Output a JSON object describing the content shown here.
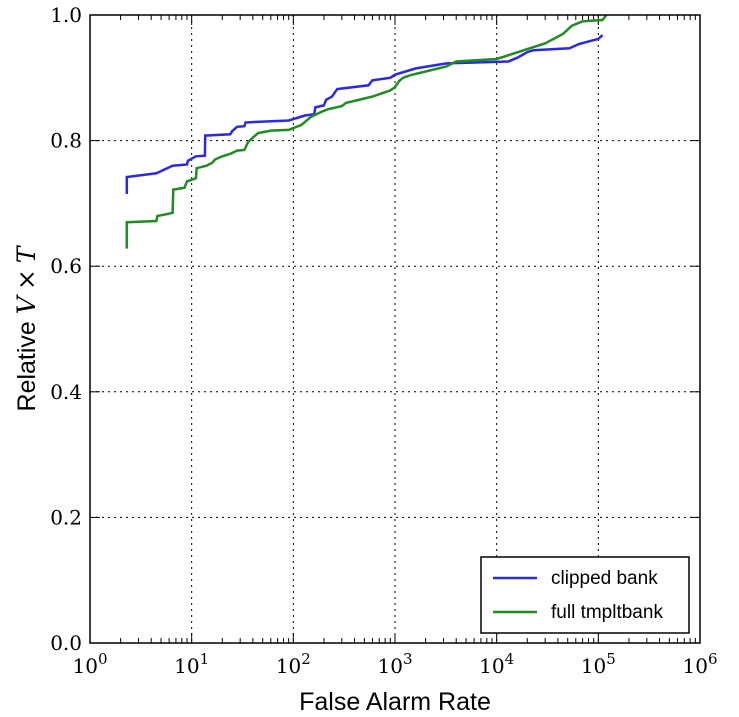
{
  "chart_data": {
    "type": "line",
    "title": "",
    "xlabel": "False Alarm Rate",
    "ylabel_prefix": "Relative ",
    "ylabel_math_v": "V",
    "ylabel_math_times": "×",
    "ylabel_math_t": "T",
    "xscale": "log",
    "xlim": [
      1,
      1000000
    ],
    "ylim": [
      0.0,
      1.0
    ],
    "grid": true,
    "legend_position": "lower-right",
    "xticks": [
      {
        "base": "10",
        "exp": "0"
      },
      {
        "base": "10",
        "exp": "1"
      },
      {
        "base": "10",
        "exp": "2"
      },
      {
        "base": "10",
        "exp": "3"
      },
      {
        "base": "10",
        "exp": "4"
      },
      {
        "base": "10",
        "exp": "5"
      },
      {
        "base": "10",
        "exp": "6"
      }
    ],
    "yticks": [
      "0.0",
      "0.2",
      "0.4",
      "0.6",
      "0.8",
      "1.0"
    ],
    "series": [
      {
        "name": "clipped bank",
        "color": "#2a2ae6",
        "points": [
          [
            2.3,
            0.715
          ],
          [
            2.3,
            0.742
          ],
          [
            4.5,
            0.748
          ],
          [
            6.5,
            0.76
          ],
          [
            9.0,
            0.762
          ],
          [
            9.2,
            0.768
          ],
          [
            11.0,
            0.775
          ],
          [
            13.5,
            0.776
          ],
          [
            13.6,
            0.808
          ],
          [
            24,
            0.81
          ],
          [
            25,
            0.815
          ],
          [
            28,
            0.822
          ],
          [
            33,
            0.823
          ],
          [
            34,
            0.829
          ],
          [
            90,
            0.832
          ],
          [
            130,
            0.84
          ],
          [
            160,
            0.842
          ],
          [
            165,
            0.853
          ],
          [
            200,
            0.856
          ],
          [
            210,
            0.865
          ],
          [
            240,
            0.87
          ],
          [
            270,
            0.882
          ],
          [
            550,
            0.888
          ],
          [
            600,
            0.896
          ],
          [
            900,
            0.9
          ],
          [
            1000,
            0.905
          ],
          [
            1600,
            0.915
          ],
          [
            3200,
            0.923
          ],
          [
            13000,
            0.926
          ],
          [
            16000,
            0.932
          ],
          [
            20000,
            0.941
          ],
          [
            23000,
            0.944
          ],
          [
            52000,
            0.947
          ],
          [
            65000,
            0.954
          ],
          [
            100000,
            0.962
          ],
          [
            110000,
            0.968
          ]
        ]
      },
      {
        "name": "full tmpltbank",
        "color": "#228b22",
        "points": [
          [
            2.3,
            0.628
          ],
          [
            2.3,
            0.67
          ],
          [
            4.5,
            0.672
          ],
          [
            4.6,
            0.68
          ],
          [
            6.5,
            0.685
          ],
          [
            6.6,
            0.722
          ],
          [
            8.5,
            0.725
          ],
          [
            9.0,
            0.735
          ],
          [
            11.0,
            0.74
          ],
          [
            11.2,
            0.756
          ],
          [
            14,
            0.76
          ],
          [
            16,
            0.765
          ],
          [
            17,
            0.77
          ],
          [
            20,
            0.775
          ],
          [
            24,
            0.779
          ],
          [
            28,
            0.784
          ],
          [
            33,
            0.785
          ],
          [
            36,
            0.798
          ],
          [
            40,
            0.805
          ],
          [
            45,
            0.812
          ],
          [
            60,
            0.816
          ],
          [
            90,
            0.817
          ],
          [
            120,
            0.825
          ],
          [
            150,
            0.838
          ],
          [
            190,
            0.846
          ],
          [
            220,
            0.85
          ],
          [
            300,
            0.855
          ],
          [
            330,
            0.86
          ],
          [
            500,
            0.867
          ],
          [
            600,
            0.87
          ],
          [
            900,
            0.88
          ],
          [
            1000,
            0.885
          ],
          [
            1100,
            0.895
          ],
          [
            1200,
            0.9
          ],
          [
            1400,
            0.904
          ],
          [
            2000,
            0.91
          ],
          [
            3200,
            0.918
          ],
          [
            4000,
            0.926
          ],
          [
            10000,
            0.93
          ],
          [
            30000,
            0.955
          ],
          [
            45000,
            0.97
          ],
          [
            55000,
            0.983
          ],
          [
            70000,
            0.99
          ],
          [
            110000,
            0.992
          ],
          [
            120000,
            1.0
          ]
        ]
      }
    ]
  }
}
